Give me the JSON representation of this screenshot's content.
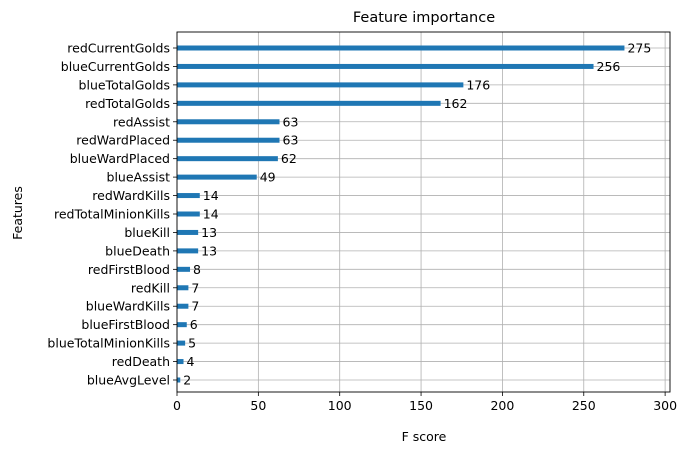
{
  "chart_data": {
    "type": "bar",
    "orientation": "horizontal",
    "title": "Feature importance",
    "xlabel": "F score",
    "ylabel": "Features",
    "xlim": [
      0,
      303
    ],
    "xticks": [
      0,
      50,
      100,
      150,
      200,
      250,
      300
    ],
    "grid": true,
    "bar_color": "#1f77b4",
    "categories": [
      "redCurrentGolds",
      "blueCurrentGolds",
      "blueTotalGolds",
      "redTotalGolds",
      "redAssist",
      "redWardPlaced",
      "blueWardPlaced",
      "blueAssist",
      "redWardKills",
      "redTotalMinionKills",
      "blueKill",
      "blueDeath",
      "redFirstBlood",
      "redKill",
      "blueWardKills",
      "blueFirstBlood",
      "blueTotalMinionKills",
      "redDeath",
      "blueAvgLevel"
    ],
    "values": [
      275,
      256,
      176,
      162,
      63,
      63,
      62,
      49,
      14,
      14,
      13,
      13,
      8,
      7,
      7,
      6,
      5,
      4,
      2
    ]
  }
}
